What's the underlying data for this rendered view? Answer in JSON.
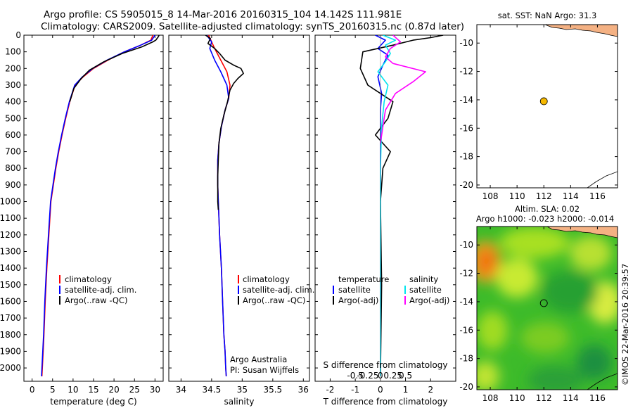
{
  "header": {
    "line1": "Argo profile: CS 5905015_8 14-Mar-2016 20160315_104 14.142S 111.981E",
    "line2": "Climatology: CARS2009. Satellite-adjusted climatology: synTS_20160315.nc (0.87d later)"
  },
  "colors": {
    "climatology": "#ff0000",
    "satellite": "#0000ff",
    "argo": "#000000",
    "salinity_satellite": "#00e5ee",
    "salinity_argo": "#ff00ff",
    "land": "#f4b183",
    "float_marker": "#f5b800"
  },
  "chart_data": [
    {
      "type": "line",
      "id": "temperature",
      "xlabel": "temperature (deg C)",
      "ylabel": "",
      "xlim": [
        -2,
        32
      ],
      "ylim": [
        2080,
        0
      ],
      "xticks": [
        0,
        5,
        10,
        15,
        20,
        25,
        30
      ],
      "yticks": [
        0,
        100,
        200,
        300,
        400,
        500,
        600,
        700,
        800,
        900,
        1000,
        1100,
        1200,
        1300,
        1400,
        1500,
        1600,
        1700,
        1800,
        1900,
        2000
      ],
      "legend": [
        "climatology",
        "satellite-adj. clim.",
        "Argo(..raw -QC)"
      ],
      "series": [
        {
          "name": "climatology",
          "color": "#ff0000",
          "x": [
            29.5,
            29.0,
            26.5,
            22.5,
            18.5,
            15.0,
            12.5,
            10.5,
            9.2,
            8.2,
            7.3,
            6.5,
            5.8,
            5.2,
            4.6,
            4.1,
            3.6,
            3.2,
            2.9,
            2.7,
            2.5,
            2.4
          ],
          "y": [
            0,
            30,
            60,
            100,
            150,
            200,
            250,
            300,
            400,
            500,
            600,
            700,
            800,
            900,
            1000,
            1200,
            1400,
            1600,
            1800,
            1900,
            2000,
            2050
          ]
        },
        {
          "name": "satellite-adj. clim.",
          "color": "#0000ff",
          "x": [
            30.0,
            29.2,
            26.5,
            22.5,
            18.3,
            14.8,
            12.3,
            10.4,
            9.1,
            8.1,
            7.2,
            6.4,
            5.7,
            5.1,
            4.5,
            4.0,
            3.5,
            3.1,
            2.8,
            2.6,
            2.4,
            2.3
          ],
          "y": [
            0,
            30,
            60,
            100,
            150,
            200,
            250,
            300,
            400,
            500,
            600,
            700,
            800,
            900,
            1000,
            1200,
            1400,
            1600,
            1800,
            1900,
            2000,
            2050
          ]
        },
        {
          "name": "Argo(..raw -QC)",
          "color": "#000000",
          "x": [
            31.0,
            30.8,
            30.2,
            29.5,
            26.8,
            22.0,
            17.5,
            14.0,
            12.0,
            10.2,
            9.2
          ],
          "y": [
            0,
            10,
            30,
            40,
            70,
            110,
            160,
            210,
            260,
            320,
            400
          ]
        }
      ]
    },
    {
      "type": "line",
      "id": "salinity",
      "xlabel": "salinity",
      "xlim": [
        33.8,
        36.1
      ],
      "ylim": [
        2080,
        0
      ],
      "xticks": [
        34,
        34.5,
        35,
        35.5,
        36
      ],
      "legend": [
        "climatology",
        "satellite-adj. clim.",
        "Argo(..raw -QC)"
      ],
      "annotation": [
        "Argo Australia",
        "PI: Susan Wijffels"
      ],
      "series": [
        {
          "name": "climatology",
          "color": "#ff0000",
          "x": [
            34.45,
            34.5,
            34.55,
            34.65,
            34.75,
            34.8,
            34.78,
            34.72,
            34.66,
            34.62,
            34.6,
            34.6,
            34.61,
            34.63,
            34.66,
            34.68,
            34.7,
            34.72,
            34.73,
            34.74
          ],
          "y": [
            0,
            40,
            80,
            150,
            220,
            300,
            380,
            450,
            550,
            650,
            750,
            900,
            1000,
            1200,
            1400,
            1600,
            1800,
            1900,
            2000,
            2050
          ]
        },
        {
          "name": "satellite-adj. clim.",
          "color": "#0000ff",
          "x": [
            34.42,
            34.5,
            34.47,
            34.55,
            34.65,
            34.75,
            34.78,
            34.72,
            34.66,
            34.62,
            34.6,
            34.6,
            34.61,
            34.63,
            34.66,
            34.68,
            34.7,
            34.72,
            34.73,
            34.74
          ],
          "y": [
            0,
            40,
            80,
            150,
            220,
            300,
            380,
            450,
            550,
            650,
            750,
            900,
            1000,
            1200,
            1400,
            1600,
            1800,
            1900,
            2000,
            2050
          ]
        },
        {
          "name": "Argo(..raw -QC)",
          "color": "#000000",
          "x": [
            34.4,
            34.48,
            34.44,
            34.55,
            34.63,
            34.72,
            34.86,
            34.98,
            35.02,
            34.93,
            34.86,
            34.8,
            34.76,
            34.7,
            34.65,
            34.62,
            34.61,
            34.6,
            34.6,
            34.6,
            34.61
          ],
          "y": [
            0,
            20,
            50,
            80,
            110,
            150,
            180,
            200,
            230,
            260,
            290,
            330,
            400,
            480,
            560,
            650,
            750,
            850,
            950,
            1000,
            1050
          ]
        }
      ]
    },
    {
      "type": "line",
      "id": "difference",
      "xlabel": "T difference from climatology",
      "xlabel_top": "S difference from climatology",
      "xlim": [
        -2.6,
        3.0
      ],
      "ylim": [
        2080,
        0
      ],
      "xticks": [
        -2,
        -1,
        0,
        1,
        2
      ],
      "s_ticks": [
        "-0.5",
        "-0.25",
        "0",
        "0.25",
        "0.5"
      ],
      "legend_temperature": [
        "temperature",
        "satellite",
        "Argo(-adj)"
      ],
      "legend_salinity": [
        "salinity",
        "satellite",
        "Argo(-adj)"
      ],
      "series": [
        {
          "name": "temperature satellite",
          "color": "#0000ff",
          "x": [
            -0.2,
            0.2,
            -0.1,
            0.3,
            0.1,
            -0.1,
            0.05,
            0.0,
            0.0,
            0.0,
            0.0,
            0.0
          ],
          "y": [
            0,
            30,
            80,
            120,
            180,
            250,
            350,
            450,
            600,
            800,
            1200,
            2050
          ]
        },
        {
          "name": "temperature Argo(-adj)",
          "color": "#000000",
          "x": [
            2.5,
            2.0,
            1.3,
            0.5,
            -0.7,
            -0.8,
            -0.5,
            0.5,
            0.3,
            -0.2,
            0.4,
            0.1,
            0.0,
            0.05,
            0.0
          ],
          "y": [
            0,
            15,
            30,
            60,
            100,
            200,
            300,
            400,
            500,
            600,
            700,
            800,
            1000,
            1500,
            2050
          ]
        },
        {
          "name": "salinity satellite",
          "color": "#00e5ee",
          "x": [
            0.1,
            0.6,
            0.2,
            0.4,
            0.2,
            -0.1,
            0.3,
            0.15,
            0.05,
            0.0,
            0.0,
            0.0,
            0.0
          ],
          "y": [
            0,
            30,
            60,
            110,
            160,
            220,
            300,
            400,
            550,
            800,
            1100,
            1500,
            2050
          ]
        },
        {
          "name": "salinity Argo(-adj)",
          "color": "#ff00ff",
          "x": [
            0.5,
            0.8,
            0.4,
            0.2,
            0.5,
            1.8,
            1.3,
            0.6,
            0.2,
            0.1,
            0.0
          ],
          "y": [
            0,
            40,
            80,
            130,
            170,
            220,
            280,
            350,
            450,
            550,
            650
          ]
        }
      ]
    },
    {
      "type": "map",
      "id": "sst-map",
      "title": "sat. SST: NaN Argo: 31.3",
      "xlim": [
        107,
        117.5
      ],
      "ylim": [
        -20.2,
        -8.7
      ],
      "xticks": [
        108,
        110,
        112,
        114,
        116
      ],
      "yticks": [
        -10,
        -12,
        -14,
        -16,
        -18,
        -20
      ],
      "float_lon": 112.0,
      "float_lat": -14.1
    },
    {
      "type": "heatmap",
      "id": "sla-map",
      "title_line1": "Altim. SLA: 0.02",
      "title_line2": "Argo h1000: -0.023 h2000: -0.014",
      "xlim": [
        107,
        117.5
      ],
      "ylim": [
        -20.2,
        -8.7
      ],
      "xticks": [
        108,
        110,
        112,
        114,
        116
      ],
      "yticks": [
        -10,
        -12,
        -14,
        -16,
        -18,
        -20
      ],
      "float_lon": 112.0,
      "float_lat": -14.1
    }
  ],
  "side_label": "©IMOS 22-Mar-2016 20:39:57"
}
